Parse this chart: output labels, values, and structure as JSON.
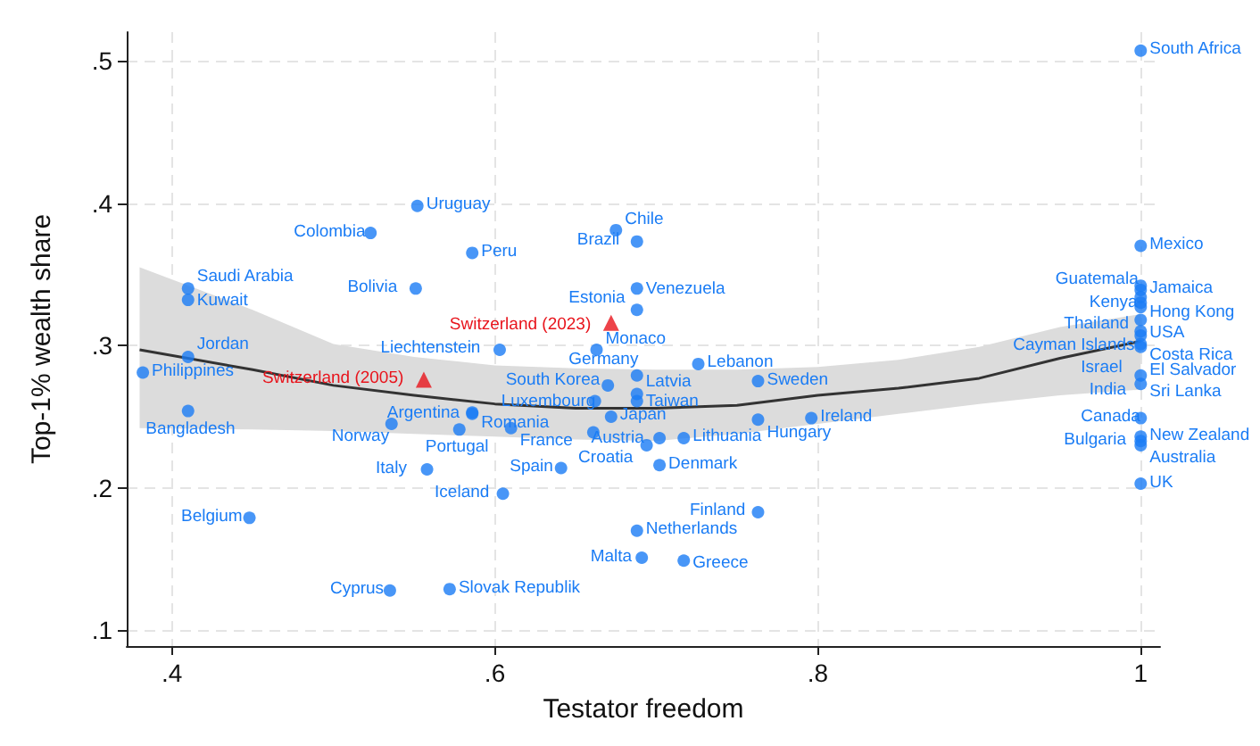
{
  "chart_data": {
    "type": "scatter",
    "xlabel": "Testator freedom",
    "ylabel": "Top-1% wealth share",
    "xlim": [
      0.372,
      1.012
    ],
    "ylim": [
      0.089,
      0.52
    ],
    "xticks": [
      {
        "value": 0.4,
        "label": ".4"
      },
      {
        "value": 0.6,
        "label": ".6"
      },
      {
        "value": 0.8,
        "label": ".8"
      },
      {
        "value": 1,
        "label": "1"
      }
    ],
    "yticks": [
      {
        "value": 0.1,
        "label": ".1"
      },
      {
        "value": 0.2,
        "label": ".2"
      },
      {
        "value": 0.3,
        "label": ".3"
      },
      {
        "value": 0.4,
        "label": ".4"
      },
      {
        "value": 0.5,
        "label": ".5"
      }
    ],
    "grid": true,
    "series": [
      {
        "color": "#1a7cf5",
        "marker": "circle",
        "x": [
          0.552,
          0.523,
          0.586,
          0.41,
          0.41,
          0.551,
          0.41,
          0.382,
          0.41,
          0.603,
          0.536,
          0.586,
          0.578,
          0.586,
          0.61,
          0.558,
          0.605,
          0.448,
          0.535,
          0.572,
          0.675,
          0.688,
          0.688,
          0.688,
          0.663,
          0.726,
          0.688,
          0.67,
          0.688,
          0.688,
          0.662,
          0.763,
          0.672,
          0.796,
          0.763,
          0.661,
          0.702,
          0.694,
          0.717,
          0.702,
          0.641,
          0.763,
          0.688,
          0.691,
          0.717,
          1,
          1,
          1,
          1,
          1,
          1,
          1,
          1,
          1,
          1,
          1,
          1,
          1,
          1,
          1,
          1,
          1,
          1,
          1
        ],
        "values": [
          0.398,
          0.379,
          0.365,
          0.34,
          0.332,
          0.34,
          0.292,
          0.281,
          0.254,
          0.297,
          0.245,
          0.253,
          0.241,
          0.252,
          0.242,
          0.213,
          0.196,
          0.179,
          0.128,
          0.129,
          0.381,
          0.373,
          0.34,
          0.325,
          0.297,
          0.287,
          0.279,
          0.272,
          0.266,
          0.261,
          0.261,
          0.275,
          0.25,
          0.249,
          0.248,
          0.239,
          0.235,
          0.23,
          0.235,
          0.216,
          0.214,
          0.183,
          0.17,
          0.151,
          0.149,
          0.507,
          0.37,
          0.342,
          0.339,
          0.334,
          0.33,
          0.327,
          0.318,
          0.31,
          0.307,
          0.301,
          0.299,
          0.279,
          0.273,
          0.249,
          0.236,
          0.233,
          0.23,
          0.203
        ]
      },
      {
        "color": "#e8141c",
        "marker": "triangle",
        "x": [
          0.556,
          0.672
        ],
        "values": [
          0.276,
          0.316
        ]
      },
      {
        "type": "line",
        "color": "#333333",
        "marker": "none",
        "line_style": "solid",
        "x": [
          0.38,
          0.45,
          0.5,
          0.55,
          0.6,
          0.65,
          0.7,
          0.75,
          0.8,
          0.85,
          0.9,
          0.95,
          1.0
        ],
        "values": [
          0.297,
          0.283,
          0.272,
          0.265,
          0.259,
          0.256,
          0.256,
          0.258,
          0.265,
          0.27,
          0.277,
          0.291,
          0.303
        ],
        "lower": [
          0.242,
          0.241,
          0.24,
          0.238,
          0.236,
          0.234,
          0.233,
          0.238,
          0.245,
          0.252,
          0.259,
          0.265,
          0.269
        ],
        "upper": [
          0.355,
          0.325,
          0.301,
          0.292,
          0.286,
          0.284,
          0.283,
          0.283,
          0.285,
          0.29,
          0.299,
          0.313,
          0.322
        ]
      }
    ],
    "annotations": [
      {
        "text": "Uruguay",
        "x": 0.552,
        "y": 0.398
      },
      {
        "text": "Colombia",
        "x": 0.523,
        "y": 0.379
      },
      {
        "text": "Peru",
        "x": 0.586,
        "y": 0.365
      },
      {
        "text": "Saudi Arabia",
        "x": 0.41,
        "y": 0.34
      },
      {
        "text": "Kuwait",
        "x": 0.41,
        "y": 0.332
      },
      {
        "text": "Bolivia",
        "x": 0.551,
        "y": 0.34
      },
      {
        "text": "Jordan",
        "x": 0.41,
        "y": 0.292
      },
      {
        "text": "Philippines",
        "x": 0.382,
        "y": 0.281
      },
      {
        "text": "Bangladesh",
        "x": 0.41,
        "y": 0.254
      },
      {
        "text": "Liechtenstein",
        "x": 0.603,
        "y": 0.297
      },
      {
        "text": "Norway",
        "x": 0.536,
        "y": 0.245
      },
      {
        "text": "Argentina",
        "x": 0.586,
        "y": 0.253
      },
      {
        "text": "Portugal",
        "x": 0.578,
        "y": 0.241
      },
      {
        "text": "Romania",
        "x": 0.586,
        "y": 0.252
      },
      {
        "text": "France",
        "x": 0.61,
        "y": 0.242
      },
      {
        "text": "Italy",
        "x": 0.558,
        "y": 0.213
      },
      {
        "text": "Iceland",
        "x": 0.605,
        "y": 0.196
      },
      {
        "text": "Belgium",
        "x": 0.448,
        "y": 0.179
      },
      {
        "text": "Cyprus",
        "x": 0.535,
        "y": 0.128
      },
      {
        "text": "Slovak Republik",
        "x": 0.572,
        "y": 0.129
      },
      {
        "text": "Chile",
        "x": 0.675,
        "y": 0.381
      },
      {
        "text": "Brazil",
        "x": 0.688,
        "y": 0.373
      },
      {
        "text": "Venezuela",
        "x": 0.688,
        "y": 0.34
      },
      {
        "text": "Estonia",
        "x": 0.688,
        "y": 0.325
      },
      {
        "text": "Monaco",
        "x": 0.663,
        "y": 0.297
      },
      {
        "text": "Lebanon",
        "x": 0.726,
        "y": 0.287
      },
      {
        "text": "Germany",
        "x": 0.688,
        "y": 0.279
      },
      {
        "text": "South Korea",
        "x": 0.67,
        "y": 0.272
      },
      {
        "text": "Latvia",
        "x": 0.688,
        "y": 0.266
      },
      {
        "text": "Taiwan",
        "x": 0.688,
        "y": 0.261
      },
      {
        "text": "Luxembourg",
        "x": 0.662,
        "y": 0.261
      },
      {
        "text": "Sweden",
        "x": 0.763,
        "y": 0.275
      },
      {
        "text": "Japan",
        "x": 0.672,
        "y": 0.25
      },
      {
        "text": "Ireland",
        "x": 0.796,
        "y": 0.249
      },
      {
        "text": "Hungary",
        "x": 0.763,
        "y": 0.248
      },
      {
        "text": "Austria",
        "x": 0.702,
        "y": 0.235
      },
      {
        "text": "Croatia",
        "x": 0.694,
        "y": 0.23
      },
      {
        "text": "Lithuania",
        "x": 0.717,
        "y": 0.235
      },
      {
        "text": "Denmark",
        "x": 0.702,
        "y": 0.216
      },
      {
        "text": "Spain",
        "x": 0.641,
        "y": 0.214
      },
      {
        "text": "Finland",
        "x": 0.763,
        "y": 0.183
      },
      {
        "text": "Netherlands",
        "x": 0.688,
        "y": 0.17
      },
      {
        "text": "Malta",
        "x": 0.691,
        "y": 0.151
      },
      {
        "text": "Greece",
        "x": 0.717,
        "y": 0.149
      },
      {
        "text": "South Africa",
        "x": 1,
        "y": 0.507
      },
      {
        "text": "Mexico",
        "x": 1,
        "y": 0.37
      },
      {
        "text": "Guatemala",
        "x": 1,
        "y": 0.342
      },
      {
        "text": "Jamaica",
        "x": 1,
        "y": 0.339
      },
      {
        "text": "Kenya",
        "x": 1,
        "y": 0.334
      },
      {
        "text": "Hong Kong",
        "x": 1,
        "y": 0.33
      },
      {
        "text": "Thailand",
        "x": 1,
        "y": 0.327
      },
      {
        "text": "USA",
        "x": 1,
        "y": 0.318
      },
      {
        "text": "Costa Rica",
        "x": 1,
        "y": 0.31
      },
      {
        "text": "Cayman Islands",
        "x": 1,
        "y": 0.307
      },
      {
        "text": "Israel",
        "x": 1,
        "y": 0.301
      },
      {
        "text": "El Salvador",
        "x": 1,
        "y": 0.299
      },
      {
        "text": "Sri Lanka",
        "x": 1,
        "y": 0.279
      },
      {
        "text": "India",
        "x": 1,
        "y": 0.273
      },
      {
        "text": "Canada",
        "x": 1,
        "y": 0.249
      },
      {
        "text": "New Zealand",
        "x": 1,
        "y": 0.236
      },
      {
        "text": "Bulgaria",
        "x": 1,
        "y": 0.233
      },
      {
        "text": "Australia",
        "x": 1,
        "y": 0.23
      },
      {
        "text": "UK",
        "x": 1,
        "y": 0.203
      },
      {
        "text": "Switzerland (2005)",
        "x": 0.556,
        "y": 0.276
      },
      {
        "text": "Switzerland (2023)",
        "x": 0.672,
        "y": 0.316
      }
    ]
  }
}
